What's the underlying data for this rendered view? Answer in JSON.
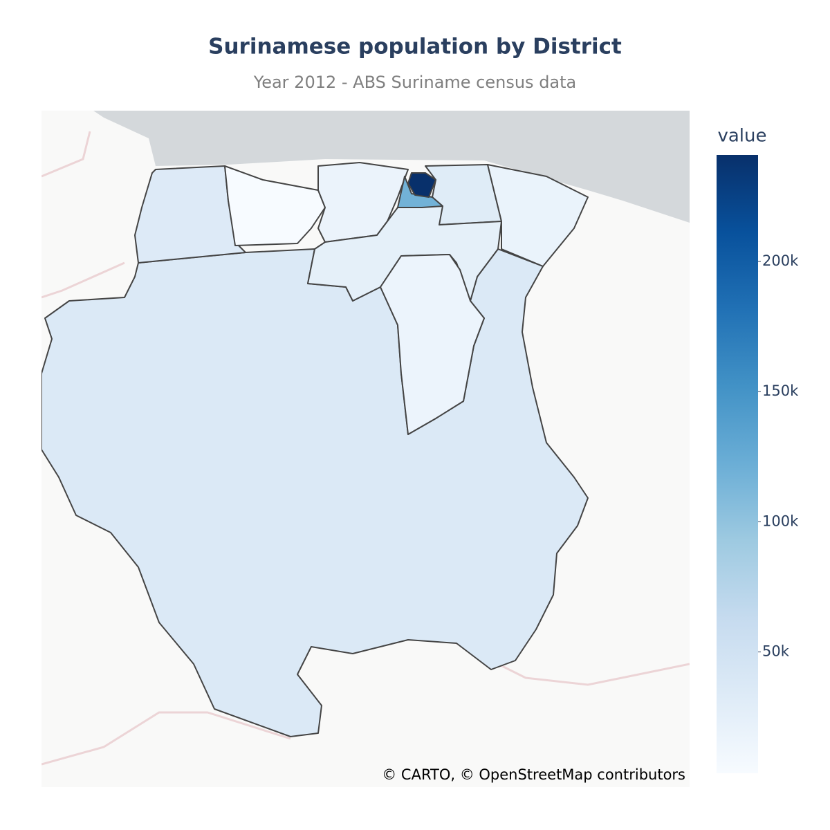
{
  "chart_data": {
    "type": "choropleth",
    "title": "Surinamese population by District",
    "subtitle": "Year 2012 - ABS Suriname census data",
    "values": [
      34233,
      3391,
      17480,
      240924,
      118222,
      31420,
      18294,
      24700,
      15909,
      37065
    ],
    "colorbar_title": "value",
    "clim": [
      3391,
      240924
    ],
    "cticks": [
      {
        "value": 50000,
        "label": "50k"
      },
      {
        "value": 100000,
        "label": "100k"
      },
      {
        "value": 150000,
        "label": "150k"
      },
      {
        "value": 200000,
        "label": "200k"
      }
    ],
    "colorscale": [
      "#f7fbff",
      "#deebf7",
      "#c6dbef",
      "#9ecae1",
      "#6baed6",
      "#4292c6",
      "#2171b5",
      "#08519c",
      "#08306b"
    ],
    "attribution": "© CARTO, © OpenStreetMap contributors"
  }
}
